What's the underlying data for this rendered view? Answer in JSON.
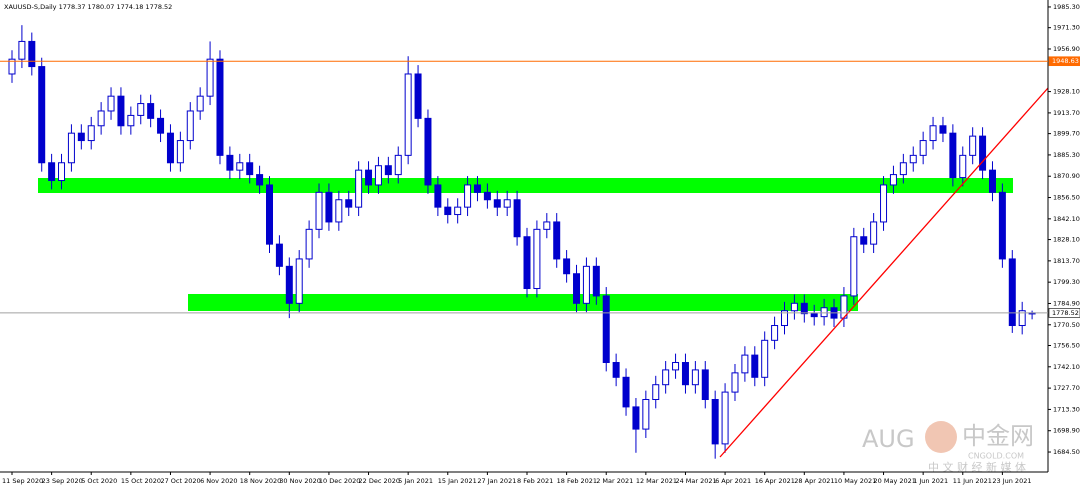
{
  "chart_data": {
    "type": "candlestick",
    "title": "XAUUSD-S,Daily  1778.37 1780.07 1774.18 1778.52",
    "categories": [
      "11 Sep 2020",
      null,
      null,
      null,
      "23 Sep 2020",
      null,
      null,
      null,
      "5 Oct 2020",
      null,
      null,
      null,
      "15 Oct 2020",
      null,
      null,
      null,
      "27 Oct 2020",
      null,
      null,
      null,
      "6 Nov 2020",
      null,
      null,
      null,
      "18 Nov 2020",
      null,
      null,
      null,
      "30 Nov 2020",
      null,
      null,
      null,
      "10 Dec 2020",
      null,
      null,
      null,
      "22 Dec 2020",
      null,
      null,
      null,
      "5 Jan 2021",
      null,
      null,
      null,
      "15 Jan 2021",
      null,
      null,
      null,
      "27 Jan 2021",
      null,
      null,
      null,
      "8 Feb 2021",
      null,
      null,
      null,
      "18 Feb 2021",
      null,
      null,
      null,
      "2 Mar 2021",
      null,
      null,
      null,
      "12 Mar 2021",
      null,
      null,
      null,
      "24 Mar 2021",
      null,
      null,
      null,
      "6 Apr 2021",
      null,
      null,
      null,
      "16 Apr 2021",
      null,
      null,
      null,
      "28 Apr 2021",
      null,
      null,
      null,
      "10 May 2021",
      null,
      null,
      null,
      "20 May 2021",
      null,
      null,
      null,
      "1 Jun 2021",
      null,
      null,
      null,
      "11 Jun 2021",
      null,
      null,
      null,
      "23 Jun 2021",
      null,
      null,
      null
    ],
    "open": [
      1940,
      1950,
      1962,
      1945,
      1880,
      1868,
      1880,
      1900,
      1895,
      1905,
      1915,
      1925,
      1905,
      1912,
      1920,
      1910,
      1900,
      1880,
      1895,
      1915,
      1925,
      1950,
      1885,
      1875,
      1880,
      1872,
      1865,
      1825,
      1810,
      1785,
      1815,
      1835,
      1860,
      1840,
      1855,
      1850,
      1875,
      1865,
      1878,
      1872,
      1885,
      1940,
      1910,
      1865,
      1850,
      1845,
      1850,
      1865,
      1860,
      1855,
      1850,
      1855,
      1830,
      1795,
      1835,
      1840,
      1815,
      1805,
      1785,
      1810,
      1790,
      1745,
      1735,
      1715,
      1700,
      1720,
      1730,
      1740,
      1745,
      1730,
      1740,
      1720,
      1690,
      1725,
      1738,
      1750,
      1735,
      1760,
      1770,
      1780,
      1785,
      1778,
      1776,
      1782,
      1775,
      1790,
      1830,
      1825,
      1840,
      1865,
      1872,
      1880,
      1885,
      1895,
      1905,
      1900,
      1870,
      1885,
      1898,
      1875,
      1860,
      1815,
      1770,
      1778.37
    ],
    "high": [
      1956,
      1973,
      1968,
      1951,
      1886,
      1886,
      1906,
      1906,
      1911,
      1921,
      1931,
      1931,
      1918,
      1926,
      1926,
      1916,
      1906,
      1901,
      1921,
      1931,
      1962,
      1956,
      1891,
      1886,
      1886,
      1878,
      1871,
      1831,
      1816,
      1821,
      1841,
      1866,
      1866,
      1861,
      1861,
      1881,
      1881,
      1884,
      1884,
      1891,
      1952,
      1946,
      1916,
      1871,
      1856,
      1856,
      1871,
      1871,
      1866,
      1861,
      1861,
      1861,
      1836,
      1841,
      1846,
      1846,
      1821,
      1811,
      1816,
      1816,
      1796,
      1751,
      1741,
      1721,
      1726,
      1736,
      1746,
      1751,
      1751,
      1746,
      1746,
      1726,
      1731,
      1744,
      1756,
      1756,
      1766,
      1776,
      1786,
      1791,
      1791,
      1784,
      1788,
      1788,
      1796,
      1836,
      1836,
      1846,
      1871,
      1878,
      1886,
      1891,
      1901,
      1911,
      1911,
      1906,
      1891,
      1904,
      1904,
      1881,
      1866,
      1821,
      1786,
      1780.07
    ],
    "low": [
      1934,
      1944,
      1939,
      1874,
      1862,
      1862,
      1874,
      1889,
      1889,
      1899,
      1909,
      1899,
      1899,
      1906,
      1904,
      1894,
      1874,
      1874,
      1889,
      1909,
      1919,
      1879,
      1869,
      1869,
      1866,
      1859,
      1819,
      1804,
      1775,
      1779,
      1809,
      1829,
      1834,
      1834,
      1844,
      1844,
      1859,
      1859,
      1866,
      1866,
      1879,
      1904,
      1859,
      1844,
      1839,
      1839,
      1844,
      1854,
      1849,
      1844,
      1844,
      1824,
      1789,
      1789,
      1829,
      1809,
      1799,
      1779,
      1779,
      1784,
      1739,
      1729,
      1709,
      1684,
      1694,
      1714,
      1724,
      1734,
      1724,
      1724,
      1714,
      1680,
      1684,
      1719,
      1732,
      1729,
      1729,
      1754,
      1764,
      1774,
      1772,
      1770,
      1770,
      1769,
      1769,
      1784,
      1819,
      1819,
      1834,
      1859,
      1866,
      1874,
      1879,
      1889,
      1894,
      1864,
      1864,
      1879,
      1869,
      1854,
      1809,
      1765,
      1764,
      1774.18
    ],
    "close": [
      1950,
      1962,
      1945,
      1880,
      1868,
      1880,
      1900,
      1895,
      1905,
      1915,
      1925,
      1905,
      1912,
      1920,
      1910,
      1900,
      1880,
      1895,
      1915,
      1925,
      1950,
      1885,
      1875,
      1880,
      1872,
      1865,
      1825,
      1810,
      1785,
      1815,
      1835,
      1860,
      1840,
      1855,
      1850,
      1875,
      1865,
      1878,
      1872,
      1885,
      1940,
      1910,
      1865,
      1850,
      1845,
      1850,
      1865,
      1860,
      1855,
      1850,
      1855,
      1830,
      1795,
      1835,
      1840,
      1815,
      1805,
      1785,
      1810,
      1790,
      1745,
      1735,
      1715,
      1700,
      1720,
      1730,
      1740,
      1745,
      1730,
      1740,
      1720,
      1690,
      1725,
      1738,
      1750,
      1735,
      1760,
      1770,
      1780,
      1785,
      1778,
      1776,
      1782,
      1775,
      1790,
      1830,
      1825,
      1840,
      1865,
      1872,
      1880,
      1885,
      1895,
      1905,
      1900,
      1870,
      1885,
      1898,
      1875,
      1860,
      1815,
      1770,
      1780,
      1778.52
    ],
    "color": "#0000cd",
    "ylim": [
      1671,
      1990
    ],
    "yticks": [
      {
        "value": 1985.3,
        "label": "1985.30"
      },
      {
        "value": 1971.3,
        "label": "1971.30"
      },
      {
        "value": 1956.9,
        "label": "1956.90"
      },
      {
        "value": 1928.1,
        "label": "1928.10"
      },
      {
        "value": 1913.7,
        "label": "1913.70"
      },
      {
        "value": 1899.7,
        "label": "1899.70"
      },
      {
        "value": 1885.3,
        "label": "1885.30"
      },
      {
        "value": 1870.9,
        "label": "1870.90"
      },
      {
        "value": 1856.5,
        "label": "1856.50"
      },
      {
        "value": 1842.1,
        "label": "1842.10"
      },
      {
        "value": 1828.1,
        "label": "1828.10"
      },
      {
        "value": 1813.7,
        "label": "1813.70"
      },
      {
        "value": 1799.3,
        "label": "1799.30"
      },
      {
        "value": 1784.9,
        "label": "1784.90"
      },
      {
        "value": 1770.5,
        "label": "1770.50"
      },
      {
        "value": 1756.5,
        "label": "1756.50"
      },
      {
        "value": 1742.1,
        "label": "1742.10"
      },
      {
        "value": 1727.7,
        "label": "1727.70"
      },
      {
        "value": 1713.3,
        "label": "1713.30"
      },
      {
        "value": 1698.9,
        "label": "1698.90"
      },
      {
        "value": 1684.5,
        "label": "1684.50"
      }
    ],
    "levels": [
      {
        "value": 1948.63,
        "color": "#ff6a00"
      },
      {
        "value": 1778.52,
        "color": "#a0a0a0"
      }
    ],
    "watermark": [
      "AUG",
      "中金网",
      "CNGOLD.COM",
      "中 文 财 经 新 媒 体"
    ]
  }
}
